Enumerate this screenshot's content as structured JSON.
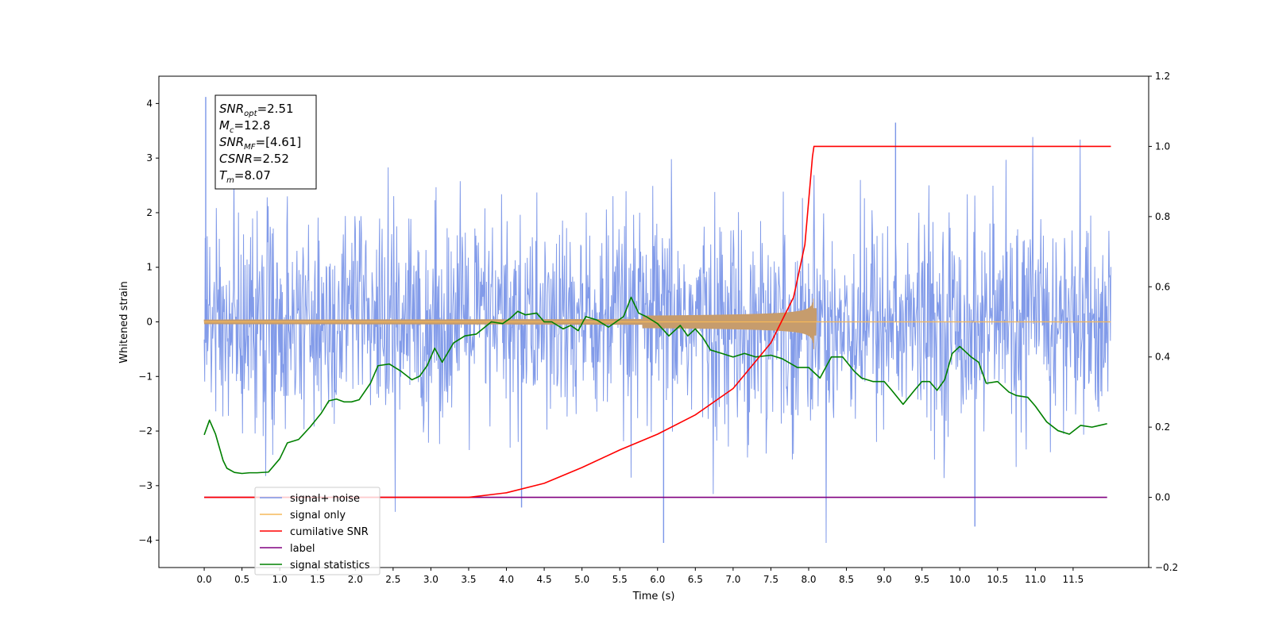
{
  "chart_data": {
    "type": "line",
    "xlabel": "Time (s)",
    "ylabel": "Whitened strain",
    "xlim": [
      -0.6,
      12.5
    ],
    "ylim": [
      -4.5,
      4.5
    ],
    "y2lim": [
      -0.2,
      1.2
    ],
    "grid": false,
    "legend_position": "lower-left",
    "x_ticks": [
      0.0,
      0.5,
      1.0,
      1.5,
      2.0,
      2.5,
      3.0,
      3.5,
      4.0,
      4.5,
      5.0,
      5.5,
      6.0,
      6.5,
      7.0,
      7.5,
      8.0,
      8.5,
      9.0,
      9.5,
      10.0,
      10.5,
      11.0,
      11.5
    ],
    "x_tick_labels": [
      "0.0",
      "0.5",
      "1.0",
      "1.5",
      "2.0",
      "2.5",
      "3.0",
      "3.5",
      "4.0",
      "4.5",
      "5.0",
      "5.5",
      "6.0",
      "6.5",
      "7.0",
      "7.5",
      "8.0",
      "8.5",
      "9.0",
      "9.5",
      "10.0",
      "10.5",
      "11.0",
      "11.5"
    ],
    "y_ticks": [
      -4,
      -3,
      -2,
      -1,
      0,
      1,
      2,
      3,
      4
    ],
    "y_tick_labels": [
      "−4",
      "−3",
      "−2",
      "−1",
      "0",
      "1",
      "2",
      "3",
      "4"
    ],
    "y2_ticks": [
      -0.2,
      0.0,
      0.2,
      0.4,
      0.6,
      0.8,
      1.0,
      1.2
    ],
    "y2_tick_labels": [
      "−0.2",
      "0.0",
      "0.2",
      "0.4",
      "0.6",
      "0.8",
      "1.0",
      "1.2"
    ],
    "annotation": [
      {
        "base": "SNR",
        "sub": "opt",
        "value": "=2.51"
      },
      {
        "base": "M",
        "sub": "c",
        "value": "=12.8"
      },
      {
        "base": "SNR",
        "sub": "MF",
        "value": "=[4.61]"
      },
      {
        "base": "CSNR",
        "sub": "",
        "value": "=2.52"
      },
      {
        "base": "T",
        "sub": "m",
        "value": "=8.07"
      }
    ],
    "series": [
      {
        "name": "signal+ noise",
        "axis": "left",
        "color": "#7b96e8",
        "kind": "noise",
        "x_start": 0.0,
        "x_end": 12.0,
        "typical_range": [
          -1.9,
          1.9
        ],
        "observed_min": -4.05,
        "observed_max": 4.12
      },
      {
        "name": "signal only",
        "axis": "left",
        "color": "#f5b85a",
        "kind": "chirp",
        "x_start": 0.0,
        "x_end": 12.0,
        "merger_time": 8.07,
        "peak_amplitude": 0.5
      },
      {
        "name": "cumilative SNR",
        "axis": "right",
        "color": "#ff0000",
        "x": [
          0.0,
          3.5,
          4.0,
          4.5,
          5.0,
          5.5,
          6.0,
          6.5,
          7.0,
          7.5,
          7.8,
          7.95,
          8.05,
          8.07,
          12.0
        ],
        "y": [
          0.0,
          0.0,
          0.013,
          0.04,
          0.085,
          0.135,
          0.18,
          0.235,
          0.31,
          0.44,
          0.57,
          0.72,
          0.97,
          1.0,
          1.0
        ]
      },
      {
        "name": "label",
        "axis": "right",
        "color": "#800080",
        "x": [
          0.0,
          11.95
        ],
        "y": [
          0.0,
          0.0
        ]
      },
      {
        "name": "signal statistics",
        "axis": "right",
        "color": "#008000",
        "x": [
          0.0,
          0.07,
          0.15,
          0.25,
          0.3,
          0.4,
          0.5,
          0.6,
          0.7,
          0.85,
          1.0,
          1.1,
          1.25,
          1.4,
          1.55,
          1.65,
          1.75,
          1.85,
          1.95,
          2.05,
          2.2,
          2.3,
          2.45,
          2.6,
          2.75,
          2.85,
          2.95,
          3.05,
          3.15,
          3.3,
          3.45,
          3.6,
          3.8,
          3.95,
          4.05,
          4.15,
          4.25,
          4.4,
          4.5,
          4.6,
          4.75,
          4.85,
          4.95,
          5.05,
          5.2,
          5.35,
          5.45,
          5.55,
          5.65,
          5.75,
          5.85,
          6.0,
          6.15,
          6.3,
          6.4,
          6.5,
          6.6,
          6.7,
          6.85,
          7.0,
          7.15,
          7.3,
          7.5,
          7.65,
          7.85,
          8.0,
          8.15,
          8.3,
          8.45,
          8.6,
          8.7,
          8.85,
          9.0,
          9.1,
          9.25,
          9.4,
          9.5,
          9.6,
          9.7,
          9.8,
          9.9,
          10.0,
          10.15,
          10.25,
          10.35,
          10.5,
          10.65,
          10.75,
          10.9,
          11.0,
          11.15,
          11.3,
          11.45,
          11.6,
          11.75,
          11.85,
          11.95
        ],
        "y": [
          0.178,
          0.22,
          0.18,
          0.105,
          0.083,
          0.071,
          0.068,
          0.07,
          0.07,
          0.072,
          0.11,
          0.155,
          0.165,
          0.2,
          0.24,
          0.275,
          0.28,
          0.272,
          0.272,
          0.278,
          0.325,
          0.375,
          0.38,
          0.36,
          0.335,
          0.345,
          0.375,
          0.425,
          0.385,
          0.44,
          0.46,
          0.465,
          0.5,
          0.495,
          0.51,
          0.53,
          0.52,
          0.525,
          0.5,
          0.5,
          0.48,
          0.49,
          0.475,
          0.515,
          0.505,
          0.485,
          0.5,
          0.515,
          0.57,
          0.525,
          0.515,
          0.495,
          0.46,
          0.49,
          0.46,
          0.48,
          0.455,
          0.42,
          0.41,
          0.4,
          0.41,
          0.4,
          0.405,
          0.395,
          0.37,
          0.37,
          0.34,
          0.4,
          0.4,
          0.36,
          0.34,
          0.33,
          0.33,
          0.305,
          0.265,
          0.305,
          0.33,
          0.33,
          0.305,
          0.335,
          0.41,
          0.43,
          0.4,
          0.385,
          0.325,
          0.33,
          0.3,
          0.29,
          0.285,
          0.26,
          0.215,
          0.19,
          0.18,
          0.205,
          0.2,
          0.205,
          0.21
        ]
      }
    ]
  }
}
